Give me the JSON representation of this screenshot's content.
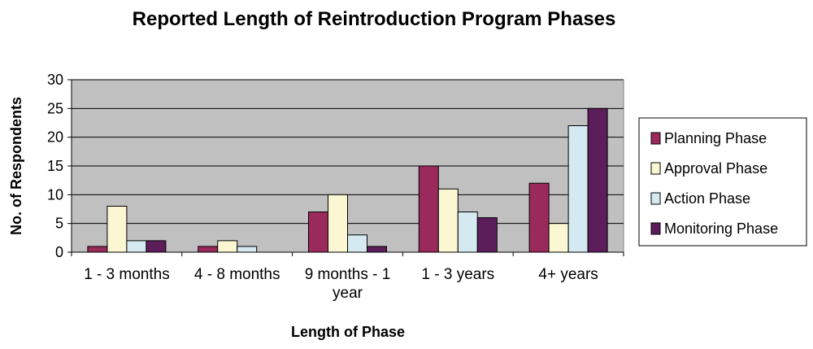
{
  "chart_data": {
    "type": "bar",
    "title": "Reported Length of Reintroduction Program Phases",
    "xlabel": "Length of Phase",
    "ylabel": "No. of Respondents",
    "categories": [
      [
        "1 - 3 months"
      ],
      [
        "4 - 8 months"
      ],
      [
        "9 months - 1",
        "year"
      ],
      [
        "1 - 3 years"
      ],
      [
        "4+ years"
      ]
    ],
    "series": [
      {
        "name": "Planning Phase",
        "color": "#9b2a5c",
        "values": [
          1,
          1,
          7,
          15,
          12
        ]
      },
      {
        "name": "Approval Phase",
        "color": "#fbf7d2",
        "values": [
          8,
          2,
          10,
          11,
          5
        ]
      },
      {
        "name": "Action Phase",
        "color": "#d4eaf0",
        "values": [
          2,
          1,
          3,
          7,
          22
        ]
      },
      {
        "name": "Monitoring Phase",
        "color": "#5c1e5a",
        "values": [
          2,
          0,
          1,
          6,
          25
        ]
      }
    ],
    "ylim": [
      0,
      30
    ],
    "yticks": [
      0,
      5,
      10,
      15,
      20,
      25,
      30
    ],
    "grid": true,
    "plot_background": "#c0c0c0",
    "legend_position": "right"
  }
}
